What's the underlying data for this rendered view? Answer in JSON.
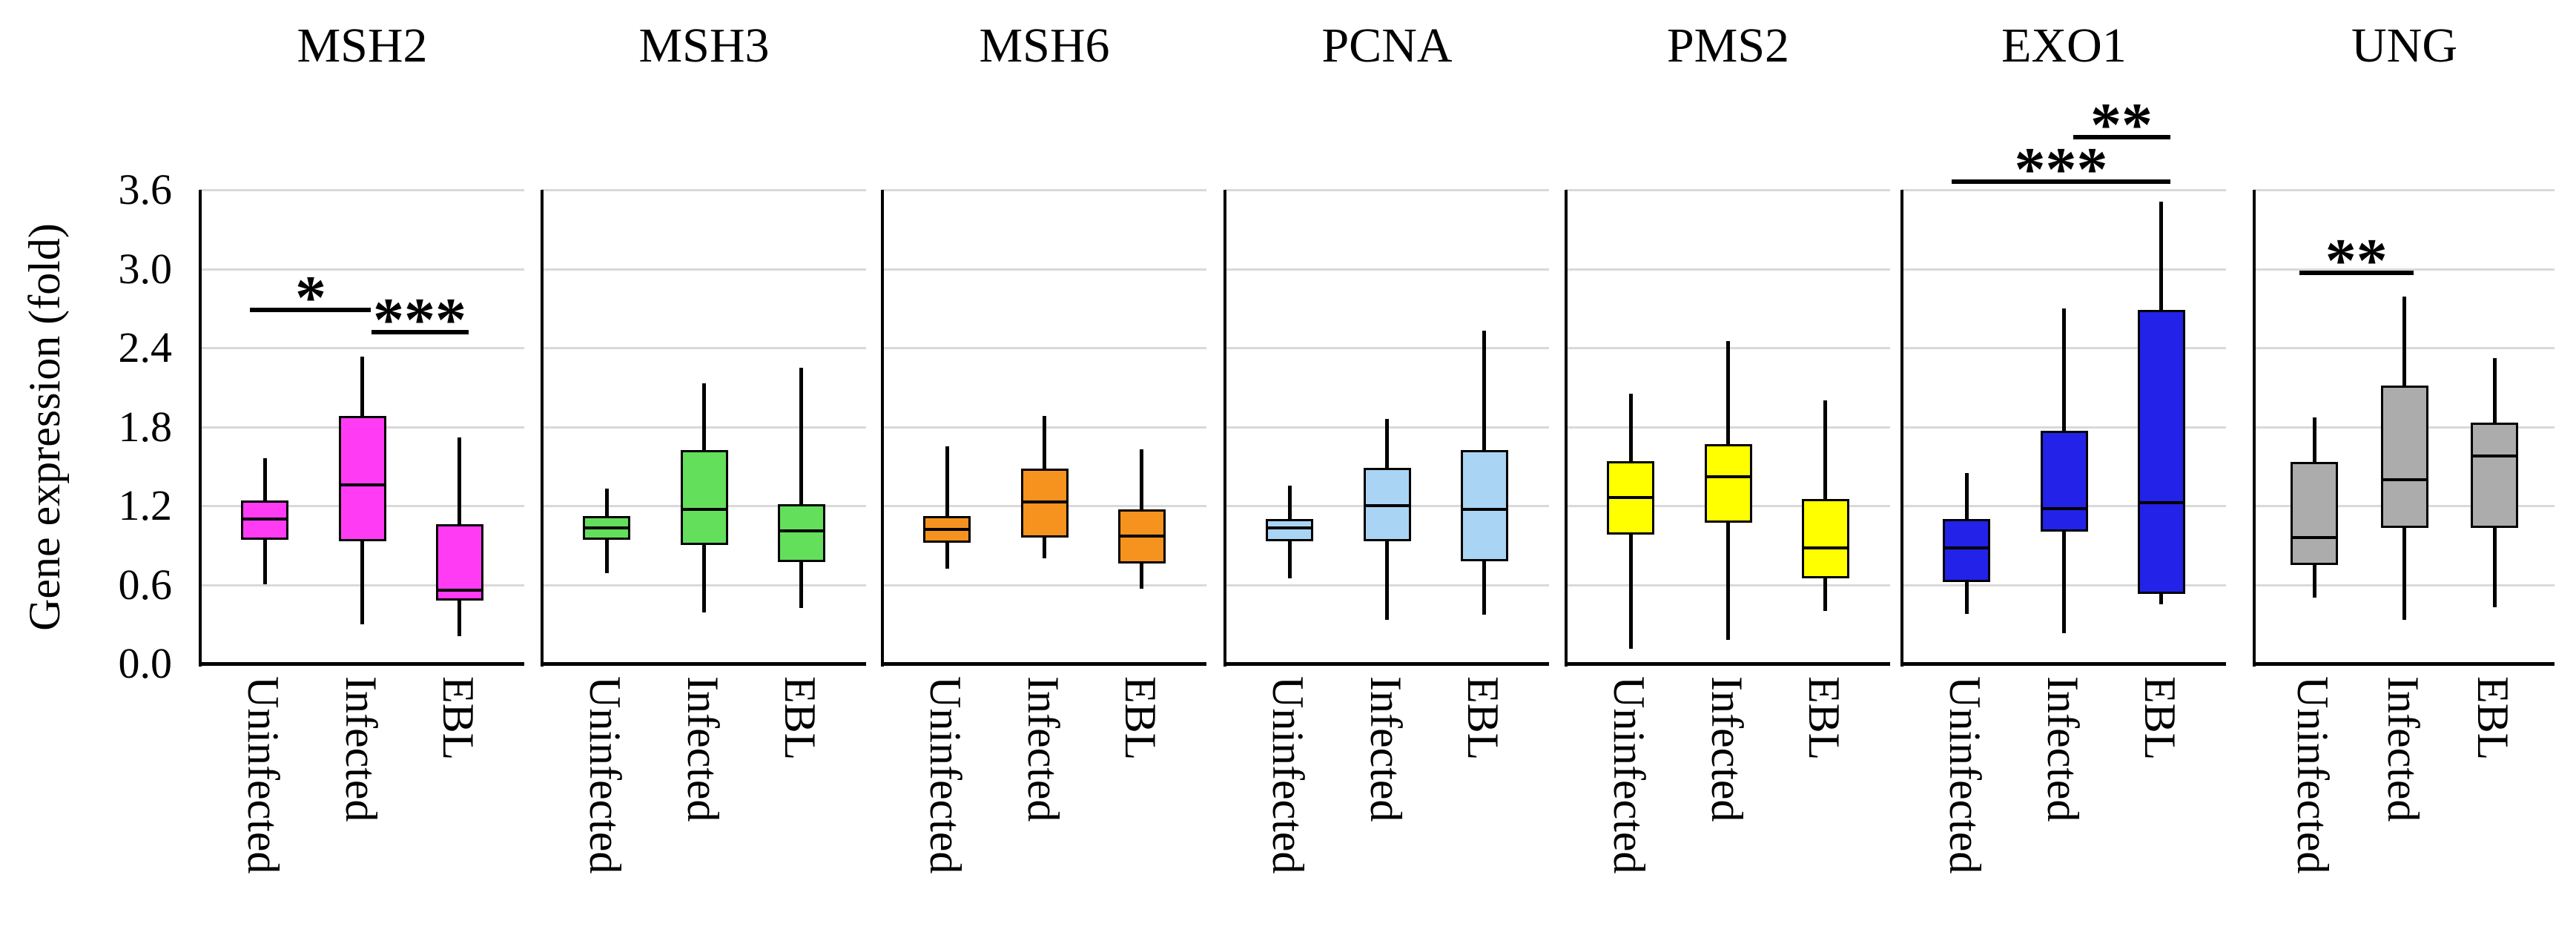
{
  "figure": {
    "y_axis": {
      "title": "Gene expression (fold)",
      "ticks": [
        "0.0",
        "0.6",
        "1.2",
        "1.8",
        "2.4",
        "3.0",
        "3.6"
      ],
      "min": 0.0,
      "max": 3.6,
      "step": 0.6
    },
    "categories": [
      "Uninfected",
      "Infected",
      "EBL"
    ],
    "gridline_color": "#d9d9d9",
    "axis_color": "#000000"
  },
  "chart_data": [
    {
      "type": "box",
      "gene": "MSH2",
      "color": "#FF3CF4",
      "categories": [
        "Uninfected",
        "Infected",
        "EBL"
      ],
      "boxes": [
        {
          "category": "Uninfected",
          "whisker_low": 0.6,
          "q1": 0.94,
          "median": 1.1,
          "q3": 1.24,
          "whisker_high": 1.56
        },
        {
          "category": "Infected",
          "whisker_low": 0.3,
          "q1": 0.93,
          "median": 1.36,
          "q3": 1.88,
          "whisker_high": 2.33
        },
        {
          "category": "EBL",
          "whisker_low": 0.21,
          "q1": 0.48,
          "median": 0.56,
          "q3": 1.06,
          "whisker_high": 1.72
        }
      ],
      "significance": [
        {
          "label": "*",
          "from": 0,
          "to": 1,
          "y": 2.69
        },
        {
          "label": "***",
          "from": 1,
          "to": 2,
          "y": 2.52
        }
      ]
    },
    {
      "type": "box",
      "gene": "MSH3",
      "color": "#63DF5C",
      "categories": [
        "Uninfected",
        "Infected",
        "EBL"
      ],
      "boxes": [
        {
          "category": "Uninfected",
          "whisker_low": 0.69,
          "q1": 0.94,
          "median": 1.03,
          "q3": 1.12,
          "whisker_high": 1.33
        },
        {
          "category": "Infected",
          "whisker_low": 0.39,
          "q1": 0.9,
          "median": 1.17,
          "q3": 1.62,
          "whisker_high": 2.13
        },
        {
          "category": "EBL",
          "whisker_low": 0.42,
          "q1": 0.77,
          "median": 1.01,
          "q3": 1.21,
          "whisker_high": 2.25
        }
      ],
      "significance": []
    },
    {
      "type": "box",
      "gene": "MSH6",
      "color": "#F6921E",
      "categories": [
        "Uninfected",
        "Infected",
        "EBL"
      ],
      "boxes": [
        {
          "category": "Uninfected",
          "whisker_low": 0.72,
          "q1": 0.92,
          "median": 1.02,
          "q3": 1.12,
          "whisker_high": 1.65
        },
        {
          "category": "Infected",
          "whisker_low": 0.8,
          "q1": 0.96,
          "median": 1.23,
          "q3": 1.48,
          "whisker_high": 1.88
        },
        {
          "category": "EBL",
          "whisker_low": 0.57,
          "q1": 0.76,
          "median": 0.97,
          "q3": 1.17,
          "whisker_high": 1.63
        }
      ],
      "significance": []
    },
    {
      "type": "box",
      "gene": "PCNA",
      "color": "#AAD4F4",
      "categories": [
        "Uninfected",
        "Infected",
        "EBL"
      ],
      "boxes": [
        {
          "category": "Uninfected",
          "whisker_low": 0.65,
          "q1": 0.93,
          "median": 1.03,
          "q3": 1.1,
          "whisker_high": 1.35
        },
        {
          "category": "Infected",
          "whisker_low": 0.33,
          "q1": 0.93,
          "median": 1.2,
          "q3": 1.49,
          "whisker_high": 1.86
        },
        {
          "category": "EBL",
          "whisker_low": 0.37,
          "q1": 0.78,
          "median": 1.17,
          "q3": 1.62,
          "whisker_high": 2.53
        }
      ],
      "significance": []
    },
    {
      "type": "box",
      "gene": "PMS2",
      "color": "#FFFF00",
      "categories": [
        "Uninfected",
        "Infected",
        "EBL"
      ],
      "boxes": [
        {
          "category": "Uninfected",
          "whisker_low": 0.11,
          "q1": 0.98,
          "median": 1.26,
          "q3": 1.54,
          "whisker_high": 2.05
        },
        {
          "category": "Infected",
          "whisker_low": 0.18,
          "q1": 1.07,
          "median": 1.42,
          "q3": 1.67,
          "whisker_high": 2.45
        },
        {
          "category": "EBL",
          "whisker_low": 0.4,
          "q1": 0.65,
          "median": 0.88,
          "q3": 1.25,
          "whisker_high": 2.0
        }
      ],
      "significance": []
    },
    {
      "type": "box",
      "gene": "EXO1",
      "color": "#2222E8",
      "categories": [
        "Uninfected",
        "Infected",
        "EBL"
      ],
      "boxes": [
        {
          "category": "Uninfected",
          "whisker_low": 0.38,
          "q1": 0.62,
          "median": 0.88,
          "q3": 1.1,
          "whisker_high": 1.45
        },
        {
          "category": "Infected",
          "whisker_low": 0.23,
          "q1": 1.0,
          "median": 1.18,
          "q3": 1.77,
          "whisker_high": 2.7
        },
        {
          "category": "EBL",
          "whisker_low": 0.45,
          "q1": 0.53,
          "median": 1.22,
          "q3": 2.69,
          "whisker_high": 3.51
        }
      ],
      "significance": [
        {
          "label": "**",
          "from": 1,
          "to": 2,
          "y": 4.0
        },
        {
          "label": "***",
          "from": 0,
          "to": 2,
          "y": 3.66
        }
      ]
    },
    {
      "type": "box",
      "gene": "UNG",
      "color": "#ACACAC",
      "categories": [
        "Uninfected",
        "Infected",
        "EBL"
      ],
      "boxes": [
        {
          "category": "Uninfected",
          "whisker_low": 0.5,
          "q1": 0.75,
          "median": 0.96,
          "q3": 1.53,
          "whisker_high": 1.87
        },
        {
          "category": "Infected",
          "whisker_low": 0.33,
          "q1": 1.03,
          "median": 1.4,
          "q3": 2.11,
          "whisker_high": 2.79
        },
        {
          "category": "EBL",
          "whisker_low": 0.43,
          "q1": 1.03,
          "median": 1.58,
          "q3": 1.83,
          "whisker_high": 2.32
        }
      ],
      "significance": [
        {
          "label": "**",
          "from": 0,
          "to": 1,
          "y": 2.97
        }
      ]
    }
  ]
}
